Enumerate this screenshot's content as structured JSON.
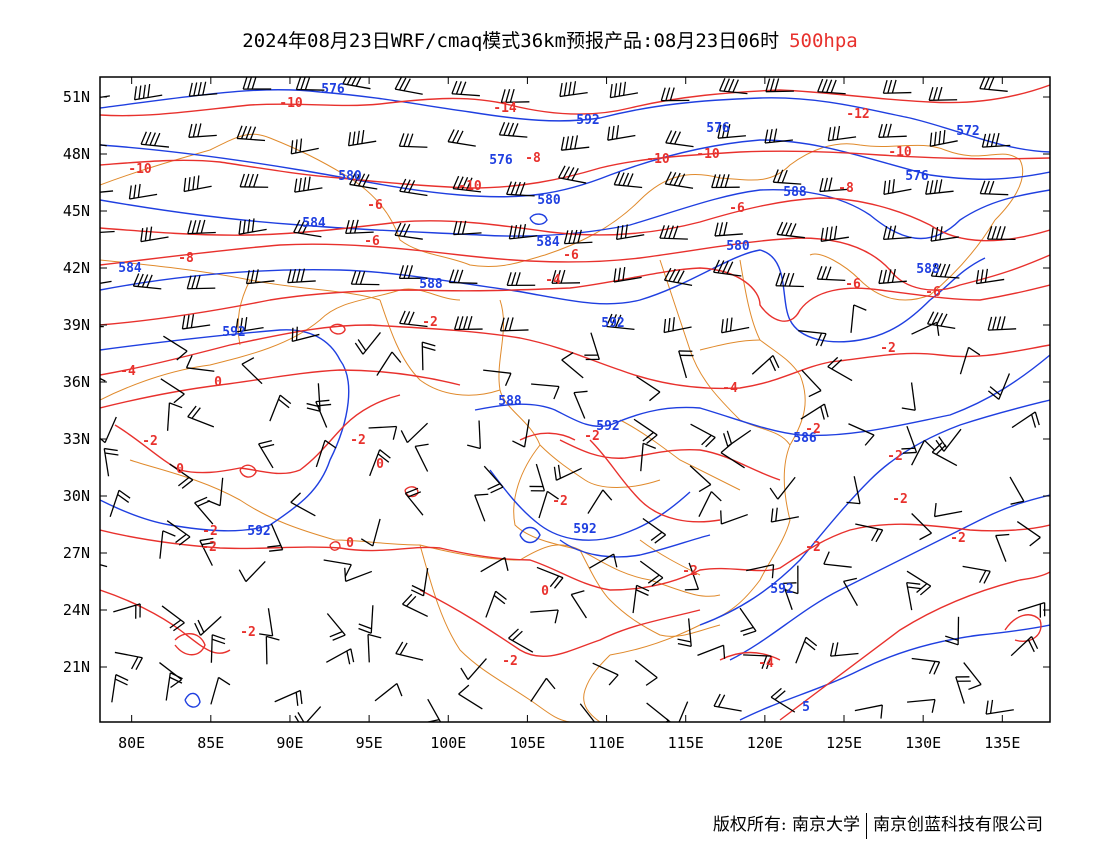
{
  "header": {
    "title": "2024年08月23日WRF/cmaq模式36km预报产品:08月23日06时",
    "level": "500hpa"
  },
  "map": {
    "lat_labels": [
      "51N",
      "48N",
      "45N",
      "42N",
      "39N",
      "36N",
      "33N",
      "30N",
      "27N",
      "24N",
      "21N"
    ],
    "lon_labels": [
      "80E",
      "85E",
      "90E",
      "95E",
      "100E",
      "105E",
      "110E",
      "115E",
      "120E",
      "125E",
      "130E",
      "135E"
    ],
    "height_labels": [
      "576",
      "592",
      "576",
      "572",
      "580",
      "580",
      "576",
      "584",
      "584",
      "580",
      "588",
      "584",
      "588",
      "588",
      "592",
      "592",
      "588",
      "592",
      "586",
      "592",
      "592",
      "592",
      "5"
    ],
    "temp_labels": [
      "-10",
      "-14",
      "-12",
      "-10",
      "-10",
      "-10",
      "-10",
      "-10",
      "-8",
      "-8",
      "-6",
      "-8",
      "-6",
      "-6",
      "-6",
      "-4",
      "-6",
      "-6",
      "-4",
      "-2",
      "-4",
      "0",
      "-2",
      "-2",
      "-2",
      "0",
      "0",
      "-2",
      "-2",
      "-2",
      "0",
      "0",
      "-2",
      "-2",
      "-2",
      "-2",
      "-2",
      "-2",
      "-2",
      "-2",
      "-4",
      "-2"
    ],
    "colors": {
      "height": "#1f3fe0",
      "temp": "#e8312d",
      "border": "#e08a2c",
      "barb": "#000000"
    }
  },
  "footer": {
    "copyright": "版权所有: 南京大学",
    "company": "南京创蓝科技有限公司"
  }
}
